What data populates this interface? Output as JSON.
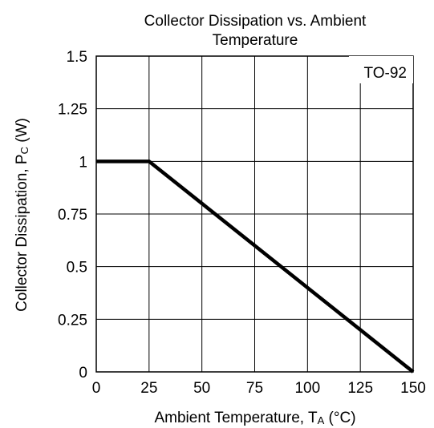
{
  "chart_data": {
    "type": "line",
    "title_line1": "Collector Dissipation vs. Ambient",
    "title_line2": "Temperature",
    "xlabel": {
      "main": "Ambient Temperature, T",
      "sub": "A",
      "tail": " (°C)"
    },
    "ylabel": {
      "main": "Collector Dissipation, P",
      "sub": "C",
      "tail": " (W)"
    },
    "package_label": "TO-92",
    "xlim": [
      0,
      150
    ],
    "ylim": [
      0,
      1.5
    ],
    "x_ticks": [
      0,
      25,
      50,
      75,
      100,
      125,
      150
    ],
    "x_tick_labels": [
      "0",
      "25",
      "50",
      "75",
      "100",
      "125",
      "150"
    ],
    "y_ticks": [
      0,
      0.25,
      0.5,
      0.75,
      1,
      1.25,
      1.5
    ],
    "y_tick_labels": [
      "0",
      "0.25",
      "0.5",
      "0.75",
      "1",
      "1.25",
      "1.5"
    ],
    "grid": true,
    "series": [
      {
        "x": [
          0,
          25,
          150
        ],
        "y": [
          1,
          1,
          0
        ],
        "color": "#000000"
      }
    ]
  }
}
